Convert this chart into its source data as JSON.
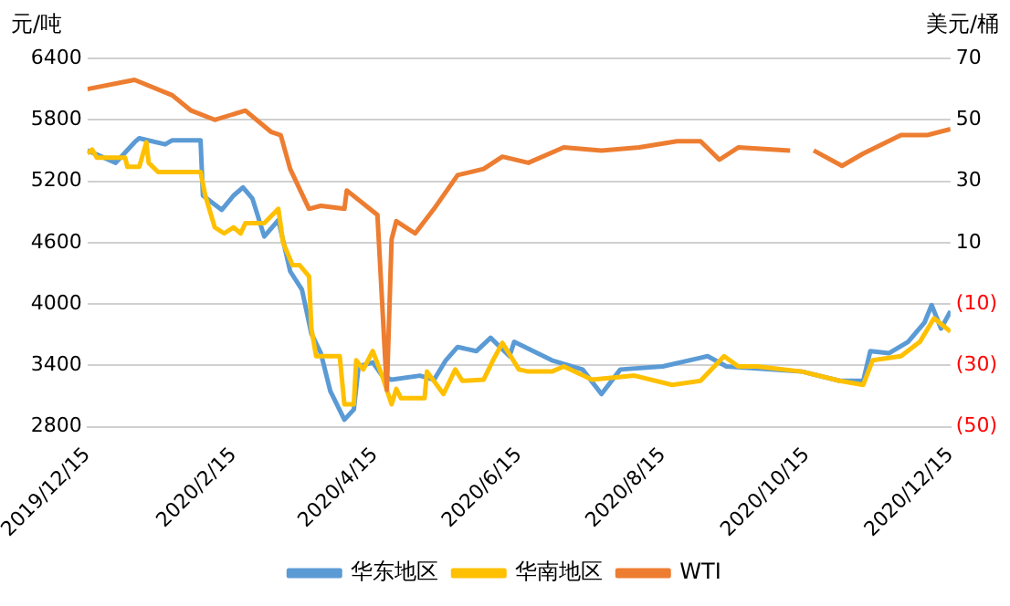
{
  "chart_data": {
    "type": "line",
    "ylabel": "元/吨",
    "y2label": "美元/桶",
    "xlim": [
      "2019-12-15",
      "2020-12-15"
    ],
    "xticks": [
      {
        "value": "2019-12-15",
        "label": "2019/12/15"
      },
      {
        "value": "2020-02-15",
        "label": "2020/2/15"
      },
      {
        "value": "2020-04-15",
        "label": "2020/4/15"
      },
      {
        "value": "2020-06-15",
        "label": "2020/6/15"
      },
      {
        "value": "2020-08-15",
        "label": "2020/8/15"
      },
      {
        "value": "2020-10-15",
        "label": "2020/10/15"
      },
      {
        "value": "2020-12-15",
        "label": "2020/12/15"
      }
    ],
    "ylim": [
      2800,
      6400
    ],
    "yticks": [
      2800,
      3400,
      4000,
      4600,
      5200,
      5800,
      6400
    ],
    "y2lim": [
      -50,
      70
    ],
    "y2ticks": [
      {
        "value": -50,
        "label": "(50)"
      },
      {
        "value": -30,
        "label": "(30)"
      },
      {
        "value": -10,
        "label": "(10)"
      },
      10,
      30,
      50,
      70
    ],
    "grid": "y",
    "legend": "bottom",
    "marker": "none",
    "line_style": "solid",
    "series": [
      {
        "name": "华东地区",
        "color": "#5b9bd5",
        "x": [
          "2019-12-15",
          "2019-12-27",
          "2020-01-04",
          "2020-01-06",
          "2020-01-17",
          "2020-01-20",
          "2020-02-01",
          "2020-02-02",
          "2020-02-10",
          "2020-02-15",
          "2020-02-19",
          "2020-02-23",
          "2020-02-28",
          "2020-03-05",
          "2020-03-10",
          "2020-03-15",
          "2020-03-19",
          "2020-03-23",
          "2020-03-27",
          "2020-04-02",
          "2020-04-06",
          "2020-04-08",
          "2020-04-14",
          "2020-04-18",
          "2020-04-22",
          "2020-05-04",
          "2020-05-10",
          "2020-05-15",
          "2020-05-20",
          "2020-05-28",
          "2020-06-03",
          "2020-06-11",
          "2020-06-13",
          "2020-06-29",
          "2020-07-12",
          "2020-07-20",
          "2020-07-28",
          "2020-08-15",
          "2020-09-03",
          "2020-09-11",
          "2020-09-30",
          "2020-10-13",
          "2020-10-29",
          "2020-11-08",
          "2020-11-11",
          "2020-11-19",
          "2020-11-27",
          "2020-12-04",
          "2020-12-07",
          "2020-12-11",
          "2020-12-15"
        ],
        "values": [
          5500,
          5380,
          5580,
          5620,
          5560,
          5600,
          5600,
          5060,
          4920,
          5060,
          5140,
          5030,
          4660,
          4820,
          4320,
          4140,
          3710,
          3520,
          3150,
          2870,
          2970,
          3390,
          3430,
          3300,
          3260,
          3300,
          3260,
          3450,
          3580,
          3540,
          3670,
          3490,
          3630,
          3450,
          3360,
          3120,
          3360,
          3390,
          3490,
          3390,
          3360,
          3340,
          3250,
          3250,
          3540,
          3520,
          3630,
          3820,
          3990,
          3760,
          3930
        ]
      },
      {
        "name": "华南地区",
        "color": "#ffc000",
        "x": [
          "2019-12-15",
          "2019-12-17",
          "2019-12-19",
          "2019-12-31",
          "2020-01-01",
          "2020-01-06",
          "2020-01-09",
          "2020-01-10",
          "2020-01-14",
          "2020-02-01",
          "2020-02-03",
          "2020-02-07",
          "2020-02-11",
          "2020-02-15",
          "2020-02-18",
          "2020-02-20",
          "2020-02-28",
          "2020-03-05",
          "2020-03-07",
          "2020-03-11",
          "2020-03-14",
          "2020-03-18",
          "2020-03-19",
          "2020-03-21",
          "2020-03-31",
          "2020-04-02",
          "2020-04-06",
          "2020-04-07",
          "2020-04-10",
          "2020-04-14",
          "2020-04-18",
          "2020-04-22",
          "2020-04-24",
          "2020-04-26",
          "2020-05-06",
          "2020-05-07",
          "2020-05-14",
          "2020-05-19",
          "2020-05-22",
          "2020-05-31",
          "2020-06-04",
          "2020-06-08",
          "2020-06-15",
          "2020-06-19",
          "2020-06-29",
          "2020-07-04",
          "2020-07-16",
          "2020-08-03",
          "2020-08-19",
          "2020-08-31",
          "2020-09-10",
          "2020-09-16",
          "2020-09-24",
          "2020-10-13",
          "2020-10-29",
          "2020-11-08",
          "2020-11-12",
          "2020-11-24",
          "2020-12-02",
          "2020-12-08",
          "2020-12-15"
        ],
        "values": [
          5470,
          5510,
          5430,
          5430,
          5340,
          5340,
          5580,
          5380,
          5290,
          5290,
          5060,
          4750,
          4690,
          4750,
          4690,
          4790,
          4790,
          4930,
          4600,
          4380,
          4380,
          4270,
          3760,
          3490,
          3490,
          3020,
          3020,
          3450,
          3360,
          3540,
          3300,
          3020,
          3170,
          3080,
          3080,
          3340,
          3120,
          3360,
          3250,
          3260,
          3450,
          3620,
          3360,
          3340,
          3340,
          3390,
          3260,
          3300,
          3210,
          3250,
          3490,
          3390,
          3390,
          3340,
          3250,
          3210,
          3450,
          3490,
          3630,
          3860,
          3730
        ]
      },
      {
        "name": "WTI",
        "color": "#ed7d31",
        "axis": "y2",
        "x": [
          "2019-12-15",
          "2020-01-04",
          "2020-01-20",
          "2020-01-28",
          "2020-02-07",
          "2020-02-20",
          "2020-03-02",
          "2020-03-06",
          "2020-03-10",
          "2020-03-18",
          "2020-03-23",
          "2020-04-02",
          "2020-04-03",
          "2020-04-16",
          "2020-04-20",
          "2020-04-22",
          "2020-04-24",
          "2020-05-02",
          "2020-05-10",
          "2020-05-20",
          "2020-05-31",
          "2020-06-08",
          "2020-06-19",
          "2020-07-04",
          "2020-07-20",
          "2020-08-05",
          "2020-08-21",
          "2020-08-31",
          "2020-09-08",
          "2020-09-16",
          "2020-10-08",
          "2020-10-12",
          "2020-10-18",
          "2020-10-30",
          "2020-11-08",
          "2020-11-24",
          "2020-12-05",
          "2020-12-15"
        ],
        "values": [
          60,
          63,
          58,
          53,
          50,
          53,
          46,
          45,
          34,
          21,
          22,
          21,
          27,
          19,
          -38,
          11,
          17,
          13,
          21,
          32,
          34,
          38,
          36,
          41,
          40,
          41,
          43,
          43,
          37,
          41,
          40,
          null,
          40,
          35,
          39,
          45,
          45,
          47
        ]
      }
    ]
  }
}
